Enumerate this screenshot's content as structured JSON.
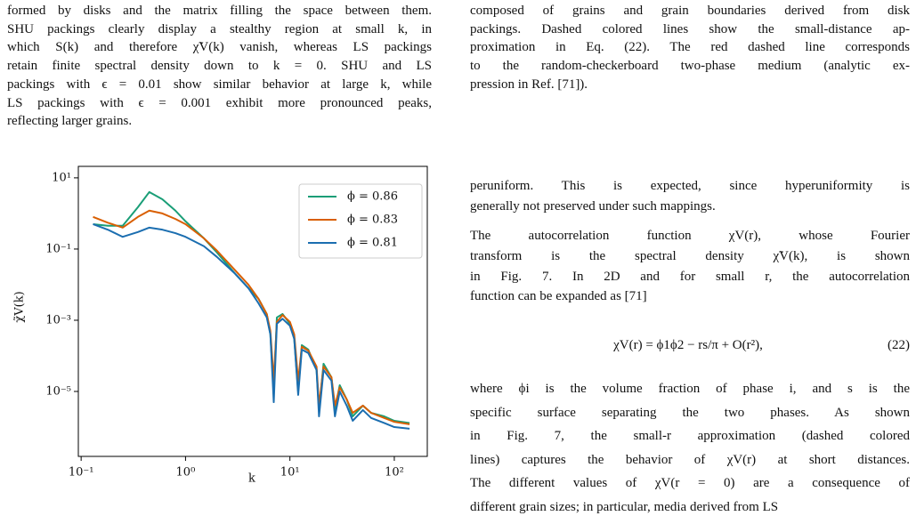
{
  "left_column": {
    "lines": [
      "formed by disks and the matrix filling the space between them.",
      "SHU packings clearly display a stealthy region at small k, in",
      "which S(k) and therefore χ̃V(k) vanish, whereas LS packings",
      "retain finite spectral density down to k = 0. SHU and LS",
      "packings with ϵ = 0.01 show similar behavior at large k, while",
      "LS packings with ϵ = 0.001 exhibit more pronounced peaks,",
      "reflecting larger grains."
    ]
  },
  "caption": {
    "lines": [
      "composed of grains and grain boundaries derived from disk",
      "packings. Dashed colored lines show the small-distance ap-",
      "proximation in Eq. (22). The red dashed line corresponds",
      "to the random-checkerboard two-phase medium (analytic ex-",
      "pression in Ref. [71])."
    ]
  },
  "body": {
    "paragraph_1": [
      "peruniform. This is expected, since hyperuniformity is",
      "generally not preserved under such mappings."
    ],
    "paragraph_2": [
      "The autocorrelation function χV(r), whose Fourier",
      "transform is the spectral density χ̃V(k), is shown",
      "in Fig. 7. In 2D and for small r, the autocorrelation",
      "function can be expanded as [71]"
    ],
    "equation": {
      "text": "χV(r) = ϕ1ϕ2 − rs/π + O(r²),",
      "number": "(22)"
    },
    "paragraph_3": [
      "where ϕi is the volume fraction of phase i, and s is the",
      "specific surface separating the two phases. As shown",
      "in Fig. 7, the small-r approximation (dashed colored",
      "lines) captures the behavior of χV(r) at short distances.",
      "The different values of χV(r = 0) are a consequence of",
      "different grain sizes; in particular, media derived from LS"
    ]
  },
  "chart_data": {
    "type": "line",
    "x_label": "k",
    "y_label": "χ̃V(k)",
    "xscale": "log",
    "yscale": "log",
    "xlim": [
      0.094,
      207
    ],
    "ylim": [
      1.5e-07,
      21
    ],
    "xticks": [
      {
        "value": 0.1,
        "label": "10⁻¹"
      },
      {
        "value": 1,
        "label": "10⁰"
      },
      {
        "value": 10,
        "label": "10¹"
      },
      {
        "value": 100,
        "label": "10²"
      }
    ],
    "yticks": [
      {
        "value": 1e-05,
        "label": "10⁻⁵"
      },
      {
        "value": 0.001,
        "label": "10⁻³"
      },
      {
        "value": 0.1,
        "label": "10⁻¹"
      },
      {
        "value": 10,
        "label": "10¹"
      }
    ],
    "legend": "upper right",
    "x": [
      0.13,
      0.18,
      0.25,
      0.35,
      0.45,
      0.6,
      0.8,
      1,
      1.5,
      2,
      3,
      4,
      5,
      6,
      6.5,
      7,
      7.5,
      8.5,
      10,
      11,
      12,
      13,
      15,
      18,
      19,
      21,
      25,
      27,
      30,
      35,
      40,
      50,
      60,
      80,
      100,
      140
    ],
    "series": [
      {
        "name": "ϕ = 0.86",
        "color": "#1a9e77",
        "values": [
          0.5,
          0.45,
          0.45,
          1.5,
          4,
          2.5,
          1.2,
          0.6,
          0.2,
          0.08,
          0.02,
          0.008,
          0.004,
          0.0015,
          0.0004,
          1e-05,
          0.0012,
          0.0015,
          0.0008,
          0.0003,
          1e-05,
          0.0002,
          0.00015,
          4e-05,
          3e-06,
          6e-05,
          2.5e-05,
          3e-06,
          1.5e-05,
          6e-06,
          2e-06,
          4e-06,
          2.5e-06,
          2e-06,
          1.5e-06,
          1.3e-06
        ]
      },
      {
        "name": "ϕ = 0.83",
        "color": "#d95f02",
        "values": [
          0.8,
          0.55,
          0.4,
          0.8,
          1.2,
          1.0,
          0.7,
          0.5,
          0.2,
          0.09,
          0.025,
          0.01,
          0.004,
          0.0015,
          0.0005,
          2e-05,
          0.0009,
          0.0014,
          0.0009,
          0.0004,
          2e-05,
          0.00018,
          0.00014,
          5e-05,
          4e-06,
          5e-05,
          2.5e-05,
          4e-06,
          1.3e-05,
          6e-06,
          2.5e-06,
          4e-06,
          2.5e-06,
          1.8e-06,
          1.4e-06,
          1.2e-06
        ]
      },
      {
        "name": "ϕ = 0.81",
        "color": "#1b6eb0",
        "values": [
          0.5,
          0.35,
          0.22,
          0.3,
          0.4,
          0.35,
          0.28,
          0.22,
          0.12,
          0.06,
          0.02,
          0.008,
          0.003,
          0.0012,
          0.0004,
          5e-06,
          0.0008,
          0.0011,
          0.0007,
          0.0003,
          8e-06,
          0.00015,
          0.00012,
          4e-05,
          2e-06,
          4e-05,
          2e-05,
          2e-06,
          1e-05,
          4e-06,
          1.5e-06,
          3e-06,
          1.8e-06,
          1.3e-06,
          1e-06,
          9e-07
        ]
      }
    ]
  }
}
